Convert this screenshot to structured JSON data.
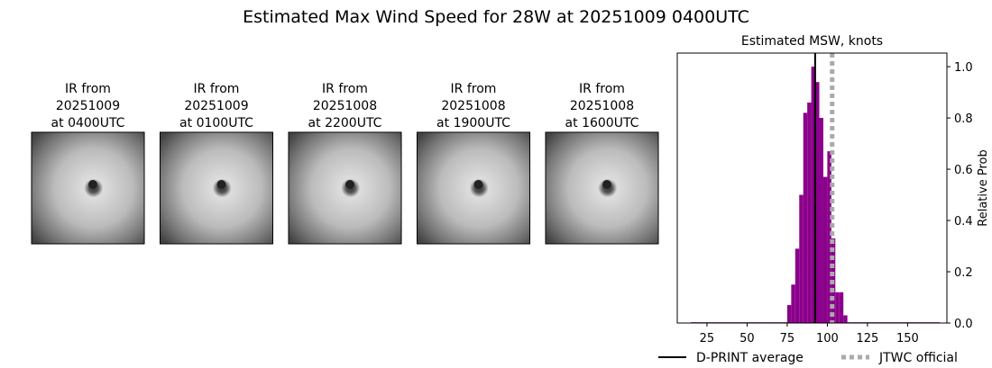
{
  "title": "Estimated Max Wind Speed for 28W at 20251009 0400UTC",
  "images": [
    {
      "lines": [
        "IR from",
        "20251009",
        "at 0400UTC"
      ]
    },
    {
      "lines": [
        "IR from",
        "20251009",
        "at 0100UTC"
      ]
    },
    {
      "lines": [
        "IR from",
        "20251008",
        "at 2200UTC"
      ]
    },
    {
      "lines": [
        "IR from",
        "20251008",
        "at 1900UTC"
      ]
    },
    {
      "lines": [
        "IR from",
        "20251008",
        "at 1600UTC"
      ]
    }
  ],
  "chart_data": {
    "type": "histogram",
    "title": "Estimated MSW, knots",
    "y_label": "Relative Prob",
    "color": "#8b008b",
    "bins": [
      15,
      17.5,
      20,
      22.5,
      25,
      27.5,
      30,
      32.5,
      35,
      37.5,
      40,
      42.5,
      45,
      47.5,
      50,
      52.5,
      55,
      57.5,
      60,
      62.5,
      65,
      67.5,
      70,
      72.5,
      75,
      77.5,
      80,
      82.5,
      85,
      87.5,
      90,
      92.5,
      95,
      97.5,
      100,
      102.5,
      105,
      107.5,
      110,
      112.5,
      115,
      117.5,
      120,
      122.5,
      125,
      127.5,
      130,
      132.5,
      135,
      137.5,
      140,
      142.5,
      145,
      147.5,
      150,
      152.5,
      155,
      157.5,
      160,
      162.5,
      165,
      167.5,
      170
    ],
    "values": [
      0.003,
      0.003,
      0.003,
      0.003,
      0.003,
      0.003,
      0.003,
      0.003,
      0.003,
      0.003,
      0.003,
      0.003,
      0.003,
      0.003,
      0.003,
      0.003,
      0.003,
      0.003,
      0.003,
      0.003,
      0.003,
      0.003,
      0.003,
      0.003,
      0.07,
      0.15,
      0.29,
      0.5,
      0.82,
      0.86,
      1.0,
      0.94,
      0.8,
      0.57,
      0.67,
      0.33,
      0.12,
      0.12,
      0.03,
      0.003,
      0.003,
      0.003,
      0.003,
      0.003,
      0.003,
      0.003,
      0.003,
      0.003,
      0.003,
      0.003,
      0.003,
      0.003,
      0.003,
      0.003,
      0.003,
      0.003,
      0.003,
      0.003,
      0.003,
      0.003,
      0.003,
      0.003
    ],
    "xlim": [
      6.5,
      174.5
    ],
    "xticks": [
      25,
      50,
      75,
      100,
      125,
      150
    ],
    "ylim": [
      0,
      1.053
    ],
    "yticks": [
      {
        "value": 0,
        "label": "0.0"
      },
      0.2,
      0.4,
      0.6,
      0.8,
      {
        "value": 1,
        "label": "1.0"
      }
    ],
    "vlines": [
      {
        "name": "D-PRINT average",
        "x": 92.4,
        "color": "#000000",
        "style": "solid"
      },
      {
        "name": "JTWC official",
        "x": 103,
        "color": "#aaaaaa",
        "style": "dotted"
      }
    ]
  }
}
